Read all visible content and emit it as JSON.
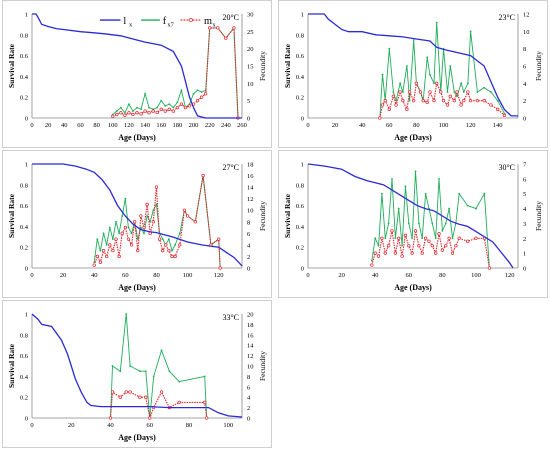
{
  "legend": {
    "lx": "l",
    "lx_sub": "x",
    "fx": "f",
    "fx_sub": "x7",
    "mx": "m",
    "mx_sub": "x"
  },
  "colors": {
    "lx": "#2b2bd6",
    "fx": "#1fae5a",
    "mx": "#e0222a",
    "mx_late": "#8b4513"
  },
  "chart_data": [
    {
      "type": "line",
      "temp": "20°C",
      "xlabel": "Age (Days)",
      "ylabel": "Survival Rate",
      "y2label": "Fecundity",
      "xlim": [
        0,
        260
      ],
      "xticks": [
        0,
        20,
        40,
        60,
        80,
        100,
        120,
        140,
        160,
        180,
        200,
        220,
        240,
        260
      ],
      "ylim": [
        0,
        1
      ],
      "yticks": [
        0,
        0.2,
        0.4,
        0.6,
        0.8,
        1
      ],
      "y2lim": [
        0,
        30
      ],
      "y2ticks": [
        0,
        5,
        10,
        15,
        20,
        25,
        30
      ],
      "series": [
        {
          "name": "lx",
          "axis": "left",
          "x": [
            0,
            5,
            8,
            12,
            20,
            30,
            40,
            60,
            75,
            90,
            110,
            125,
            140,
            160,
            175,
            185,
            190,
            195,
            200,
            205,
            215,
            260
          ],
          "y": [
            1,
            1,
            0.96,
            0.9,
            0.88,
            0.86,
            0.85,
            0.83,
            0.82,
            0.81,
            0.79,
            0.76,
            0.73,
            0.7,
            0.64,
            0.5,
            0.35,
            0.2,
            0.1,
            0.02,
            0,
            0
          ]
        },
        {
          "name": "fx7",
          "axis": "right",
          "x": [
            100,
            105,
            110,
            115,
            120,
            125,
            130,
            135,
            140,
            145,
            150,
            155,
            160,
            165,
            170,
            175,
            180,
            185,
            190,
            195,
            200,
            205,
            210,
            215,
            220,
            230,
            240,
            250,
            255
          ],
          "y": [
            1,
            2,
            3,
            1.5,
            4,
            2,
            3,
            2.5,
            7,
            3,
            2.5,
            3,
            5,
            3.5,
            4,
            3,
            4.5,
            8,
            3,
            4,
            7,
            8,
            7.5,
            8,
            26,
            26,
            23,
            26,
            0
          ]
        },
        {
          "name": "mx",
          "axis": "right",
          "x": [
            100,
            105,
            110,
            115,
            120,
            125,
            130,
            135,
            140,
            145,
            150,
            155,
            160,
            165,
            170,
            175,
            180,
            185,
            190,
            195,
            200,
            205,
            210,
            215,
            220,
            230,
            240,
            250,
            255
          ],
          "y": [
            0.5,
            1,
            1.5,
            0.8,
            1.5,
            1,
            1.5,
            1.2,
            2,
            1.5,
            2,
            1.6,
            2.5,
            2,
            2.5,
            2,
            3,
            4,
            3,
            3.5,
            4,
            5,
            6,
            7,
            26,
            26,
            23,
            26,
            0
          ]
        }
      ]
    },
    {
      "type": "line",
      "temp": "23°C",
      "xlabel": "Age (Days)",
      "ylabel": "Survival Rate",
      "y2label": "Fecundity",
      "xlim": [
        0,
        155
      ],
      "xticks": [
        0,
        20,
        40,
        60,
        80,
        100,
        120,
        140
      ],
      "ylim": [
        0,
        1
      ],
      "yticks": [
        0,
        0.2,
        0.4,
        0.6,
        0.8,
        1
      ],
      "y2lim": [
        0,
        12
      ],
      "y2ticks": [
        0,
        2,
        4,
        6,
        8,
        10,
        12
      ],
      "series": [
        {
          "name": "lx",
          "axis": "left",
          "x": [
            0,
            12,
            15,
            20,
            25,
            30,
            40,
            50,
            60,
            70,
            80,
            90,
            95,
            100,
            110,
            120,
            130,
            135,
            140,
            145,
            150,
            155
          ],
          "y": [
            1,
            1,
            0.95,
            0.9,
            0.85,
            0.83,
            0.83,
            0.8,
            0.79,
            0.78,
            0.76,
            0.74,
            0.68,
            0.66,
            0.63,
            0.6,
            0.5,
            0.35,
            0.2,
            0.08,
            0.02,
            0.02
          ]
        },
        {
          "name": "fx7",
          "axis": "right",
          "x": [
            53,
            55,
            57,
            60,
            63,
            65,
            68,
            70,
            73,
            75,
            78,
            80,
            83,
            85,
            88,
            90,
            93,
            95,
            98,
            100,
            103,
            105,
            108,
            110,
            113,
            115,
            118,
            120,
            125,
            130,
            135,
            140,
            145
          ],
          "y": [
            0,
            5,
            2,
            8,
            3,
            2,
            4,
            3,
            6,
            2,
            9,
            4,
            3,
            2,
            7,
            5,
            4,
            11,
            3,
            8,
            3,
            6,
            3,
            2.5,
            4,
            3,
            4,
            10,
            3,
            3.5,
            3,
            2,
            0.5
          ]
        },
        {
          "name": "mx",
          "axis": "right",
          "x": [
            53,
            55,
            57,
            60,
            63,
            65,
            68,
            70,
            73,
            75,
            78,
            80,
            83,
            85,
            88,
            90,
            93,
            95,
            98,
            100,
            103,
            105,
            108,
            110,
            113,
            115,
            118,
            120,
            125,
            130,
            135,
            140,
            145
          ],
          "y": [
            0,
            1.5,
            2,
            1,
            2.5,
            1.5,
            3,
            2,
            1,
            3,
            2,
            4,
            3,
            2,
            1.8,
            3,
            2,
            4,
            3,
            2,
            1.5,
            2.5,
            2,
            3,
            1.5,
            2,
            3,
            2,
            2,
            2,
            1.5,
            1,
            0.3
          ]
        }
      ]
    },
    {
      "type": "line",
      "temp": "27°C",
      "xlabel": "Age (Days)",
      "ylabel": "Survival Rate",
      "y2label": "Fecundity",
      "xlim": [
        0,
        135
      ],
      "xticks": [
        0,
        20,
        40,
        60,
        80,
        100,
        120
      ],
      "ylim": [
        0,
        1
      ],
      "yticks": [
        0,
        0.2,
        0.4,
        0.6,
        0.8,
        1
      ],
      "y2lim": [
        0,
        18
      ],
      "y2ticks": [
        0,
        2,
        4,
        6,
        8,
        10,
        12,
        14,
        16,
        18
      ],
      "series": [
        {
          "name": "lx",
          "axis": "left",
          "x": [
            0,
            20,
            28,
            35,
            40,
            45,
            50,
            55,
            60,
            65,
            70,
            75,
            80,
            90,
            100,
            110,
            120,
            125,
            130,
            135
          ],
          "y": [
            1,
            1,
            0.98,
            0.95,
            0.92,
            0.85,
            0.75,
            0.6,
            0.5,
            0.42,
            0.37,
            0.35,
            0.34,
            0.3,
            0.25,
            0.22,
            0.2,
            0.15,
            0.1,
            0.02
          ]
        },
        {
          "name": "fx7",
          "axis": "right",
          "x": [
            40,
            42,
            44,
            46,
            48,
            50,
            52,
            54,
            56,
            58,
            60,
            62,
            64,
            66,
            68,
            70,
            72,
            74,
            76,
            78,
            80,
            82,
            84,
            86,
            88,
            90,
            92,
            95,
            98,
            100,
            105,
            110,
            115,
            120,
            121
          ],
          "y": [
            1,
            5,
            3,
            6,
            4,
            7,
            5,
            8,
            6,
            9,
            12,
            7,
            6,
            8,
            5,
            7,
            6,
            9,
            8,
            10,
            11,
            6,
            5,
            4,
            5,
            3,
            4,
            6,
            10,
            9,
            8,
            16,
            4,
            5,
            0
          ]
        },
        {
          "name": "mx",
          "axis": "right",
          "x": [
            40,
            42,
            44,
            46,
            48,
            50,
            52,
            54,
            56,
            58,
            60,
            62,
            64,
            66,
            68,
            70,
            72,
            74,
            76,
            78,
            80,
            82,
            84,
            86,
            88,
            90,
            92,
            95,
            98,
            100,
            105,
            110,
            115,
            120,
            121
          ],
          "y": [
            0.5,
            2,
            1,
            3,
            2,
            4,
            3,
            5,
            2,
            6,
            7,
            5,
            4,
            8,
            3,
            9,
            7,
            11,
            6,
            8,
            14,
            5,
            3,
            4,
            3,
            2,
            2,
            4,
            10,
            9,
            8,
            16,
            4,
            5,
            0
          ]
        }
      ]
    },
    {
      "type": "line",
      "temp": "30°C",
      "xlabel": "Age (Days)",
      "ylabel": "Survival Rate",
      "y2label": "Fecundity",
      "xlim": [
        0,
        125
      ],
      "xticks": [
        0,
        20,
        40,
        60,
        80,
        100,
        120
      ],
      "ylim": [
        0,
        1
      ],
      "yticks": [
        0,
        0.2,
        0.4,
        0.6,
        0.8,
        1
      ],
      "y2lim": [
        0,
        7
      ],
      "y2ticks": [
        0,
        1,
        2,
        3,
        4,
        5,
        6,
        7
      ],
      "series": [
        {
          "name": "lx",
          "axis": "left",
          "x": [
            0,
            10,
            20,
            28,
            35,
            40,
            45,
            50,
            55,
            60,
            65,
            70,
            75,
            80,
            85,
            90,
            95,
            100,
            105,
            110,
            115,
            120,
            122
          ],
          "y": [
            1,
            0.98,
            0.95,
            0.88,
            0.84,
            0.82,
            0.8,
            0.75,
            0.7,
            0.65,
            0.6,
            0.57,
            0.55,
            0.5,
            0.45,
            0.42,
            0.4,
            0.35,
            0.3,
            0.25,
            0.15,
            0.05,
            0
          ]
        },
        {
          "name": "fx7",
          "axis": "right",
          "x": [
            38,
            40,
            42,
            44,
            46,
            48,
            50,
            52,
            54,
            56,
            58,
            60,
            62,
            64,
            66,
            68,
            70,
            72,
            74,
            76,
            78,
            80,
            82,
            84,
            86,
            88,
            90,
            95,
            100,
            105,
            108
          ],
          "y": [
            0.5,
            2,
            1.5,
            5,
            2,
            3,
            6,
            2,
            4,
            1.5,
            5.5,
            3,
            2,
            6.5,
            3,
            2,
            5,
            4,
            3,
            2,
            6,
            2.5,
            3,
            4,
            2,
            3,
            5,
            4.2,
            4,
            5,
            0
          ]
        },
        {
          "name": "mx",
          "axis": "right",
          "x": [
            38,
            40,
            42,
            44,
            46,
            48,
            50,
            52,
            54,
            56,
            58,
            60,
            62,
            64,
            66,
            68,
            70,
            72,
            74,
            76,
            78,
            80,
            82,
            84,
            86,
            88,
            90,
            95,
            100,
            105,
            108
          ],
          "y": [
            0.2,
            1,
            0.8,
            2,
            1,
            1.5,
            2.5,
            1,
            2,
            0.8,
            2.2,
            1.5,
            1,
            2.5,
            1.5,
            1,
            2,
            1.8,
            1.5,
            1,
            2.3,
            1.2,
            1.5,
            2,
            1,
            1.5,
            2,
            1.8,
            2,
            2,
            0
          ]
        }
      ]
    },
    {
      "type": "line",
      "temp": "33°C",
      "xlabel": "Age (Days)",
      "ylabel": "Survival Rate",
      "y2label": "Fecundity",
      "xlim": [
        0,
        107
      ],
      "xticks": [
        0,
        20,
        40,
        60,
        80,
        100
      ],
      "ylim": [
        0,
        1
      ],
      "yticks": [
        0,
        0.2,
        0.4,
        0.6,
        0.8,
        1
      ],
      "y2lim": [
        0,
        20
      ],
      "y2ticks": [
        0,
        2,
        4,
        6,
        8,
        10,
        12,
        14,
        16,
        18,
        20
      ],
      "series": [
        {
          "name": "lx",
          "axis": "left",
          "x": [
            0,
            3,
            5,
            10,
            15,
            18,
            20,
            22,
            25,
            28,
            30,
            35,
            40,
            50,
            60,
            70,
            80,
            90,
            95,
            100,
            107
          ],
          "y": [
            1,
            0.95,
            0.9,
            0.88,
            0.75,
            0.62,
            0.5,
            0.38,
            0.25,
            0.15,
            0.12,
            0.11,
            0.11,
            0.11,
            0.11,
            0.1,
            0.1,
            0.1,
            0.05,
            0.02,
            0.01
          ]
        },
        {
          "name": "fx7",
          "axis": "right",
          "x": [
            40,
            41,
            45,
            48,
            50,
            55,
            58,
            60,
            62,
            66,
            70,
            75,
            88,
            89
          ],
          "y": [
            0,
            10,
            9,
            20,
            10,
            9,
            9,
            0,
            8,
            13,
            9,
            7,
            8,
            0
          ]
        },
        {
          "name": "mx",
          "axis": "right",
          "x": [
            40,
            41,
            45,
            48,
            50,
            55,
            58,
            60,
            62,
            66,
            70,
            75,
            88,
            89
          ],
          "y": [
            0,
            5,
            4,
            5,
            5,
            4,
            4,
            0,
            2,
            5,
            2,
            3,
            3,
            0
          ]
        }
      ]
    }
  ]
}
